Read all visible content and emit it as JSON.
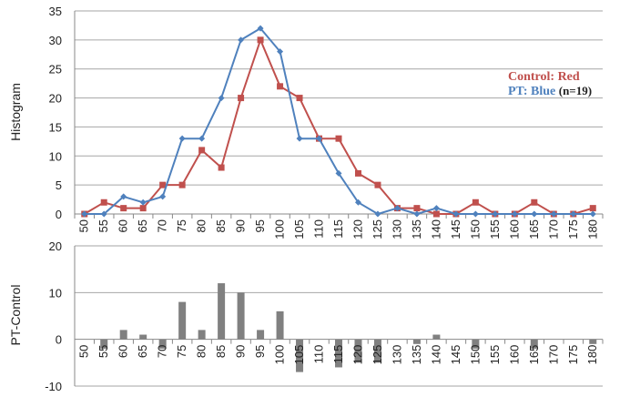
{
  "chart_data": [
    {
      "type": "line",
      "ylabel": "Histogram",
      "ylim": [
        0,
        35
      ],
      "yticks": [
        0,
        5,
        10,
        15,
        20,
        25,
        30,
        35
      ],
      "categories": [
        "50",
        "55",
        "60",
        "65",
        "70",
        "75",
        "80",
        "85",
        "90",
        "95",
        "100",
        "105",
        "110",
        "115",
        "120",
        "125",
        "130",
        "135",
        "140",
        "145",
        "150",
        "155",
        "160",
        "165",
        "170",
        "175",
        "180"
      ],
      "series": [
        {
          "name": "Control: Red",
          "color": "#c0504d",
          "marker": "square",
          "values": [
            0,
            2,
            1,
            1,
            5,
            5,
            11,
            8,
            20,
            30,
            22,
            20,
            13,
            13,
            7,
            5,
            1,
            1,
            0,
            0,
            2,
            0,
            0,
            2,
            0,
            0,
            1
          ]
        },
        {
          "name": "PT: Blue",
          "color": "#4f81bd",
          "marker": "diamond",
          "values": [
            0,
            0,
            3,
            2,
            3,
            13,
            13,
            20,
            30,
            32,
            28,
            13,
            13,
            7,
            2,
            0,
            1,
            0,
            1,
            0,
            0,
            0,
            0,
            0,
            0,
            0,
            0
          ]
        }
      ],
      "legend": {
        "placement": "right",
        "control_text": "Control: Red",
        "pt_text": "PT: Blue",
        "n_text": "(n=19)"
      },
      "grid": "horizontal"
    },
    {
      "type": "bar",
      "ylabel": "PT-Control",
      "ylim": [
        -10,
        20
      ],
      "yticks": [
        -10,
        0,
        10,
        20
      ],
      "categories": [
        "50",
        "55",
        "60",
        "65",
        "70",
        "75",
        "80",
        "85",
        "90",
        "95",
        "100",
        "105",
        "110",
        "115",
        "120",
        "125",
        "130",
        "135",
        "140",
        "145",
        "150",
        "155",
        "160",
        "165",
        "170",
        "175",
        "180"
      ],
      "values": [
        0,
        -2,
        2,
        1,
        -2,
        8,
        2,
        12,
        10,
        2,
        6,
        -7,
        0,
        -6,
        -5,
        -5,
        0,
        -1,
        1,
        0,
        -2,
        0,
        0,
        -2,
        0,
        0,
        -1
      ],
      "color": "#808080",
      "grid": "horizontal"
    }
  ]
}
